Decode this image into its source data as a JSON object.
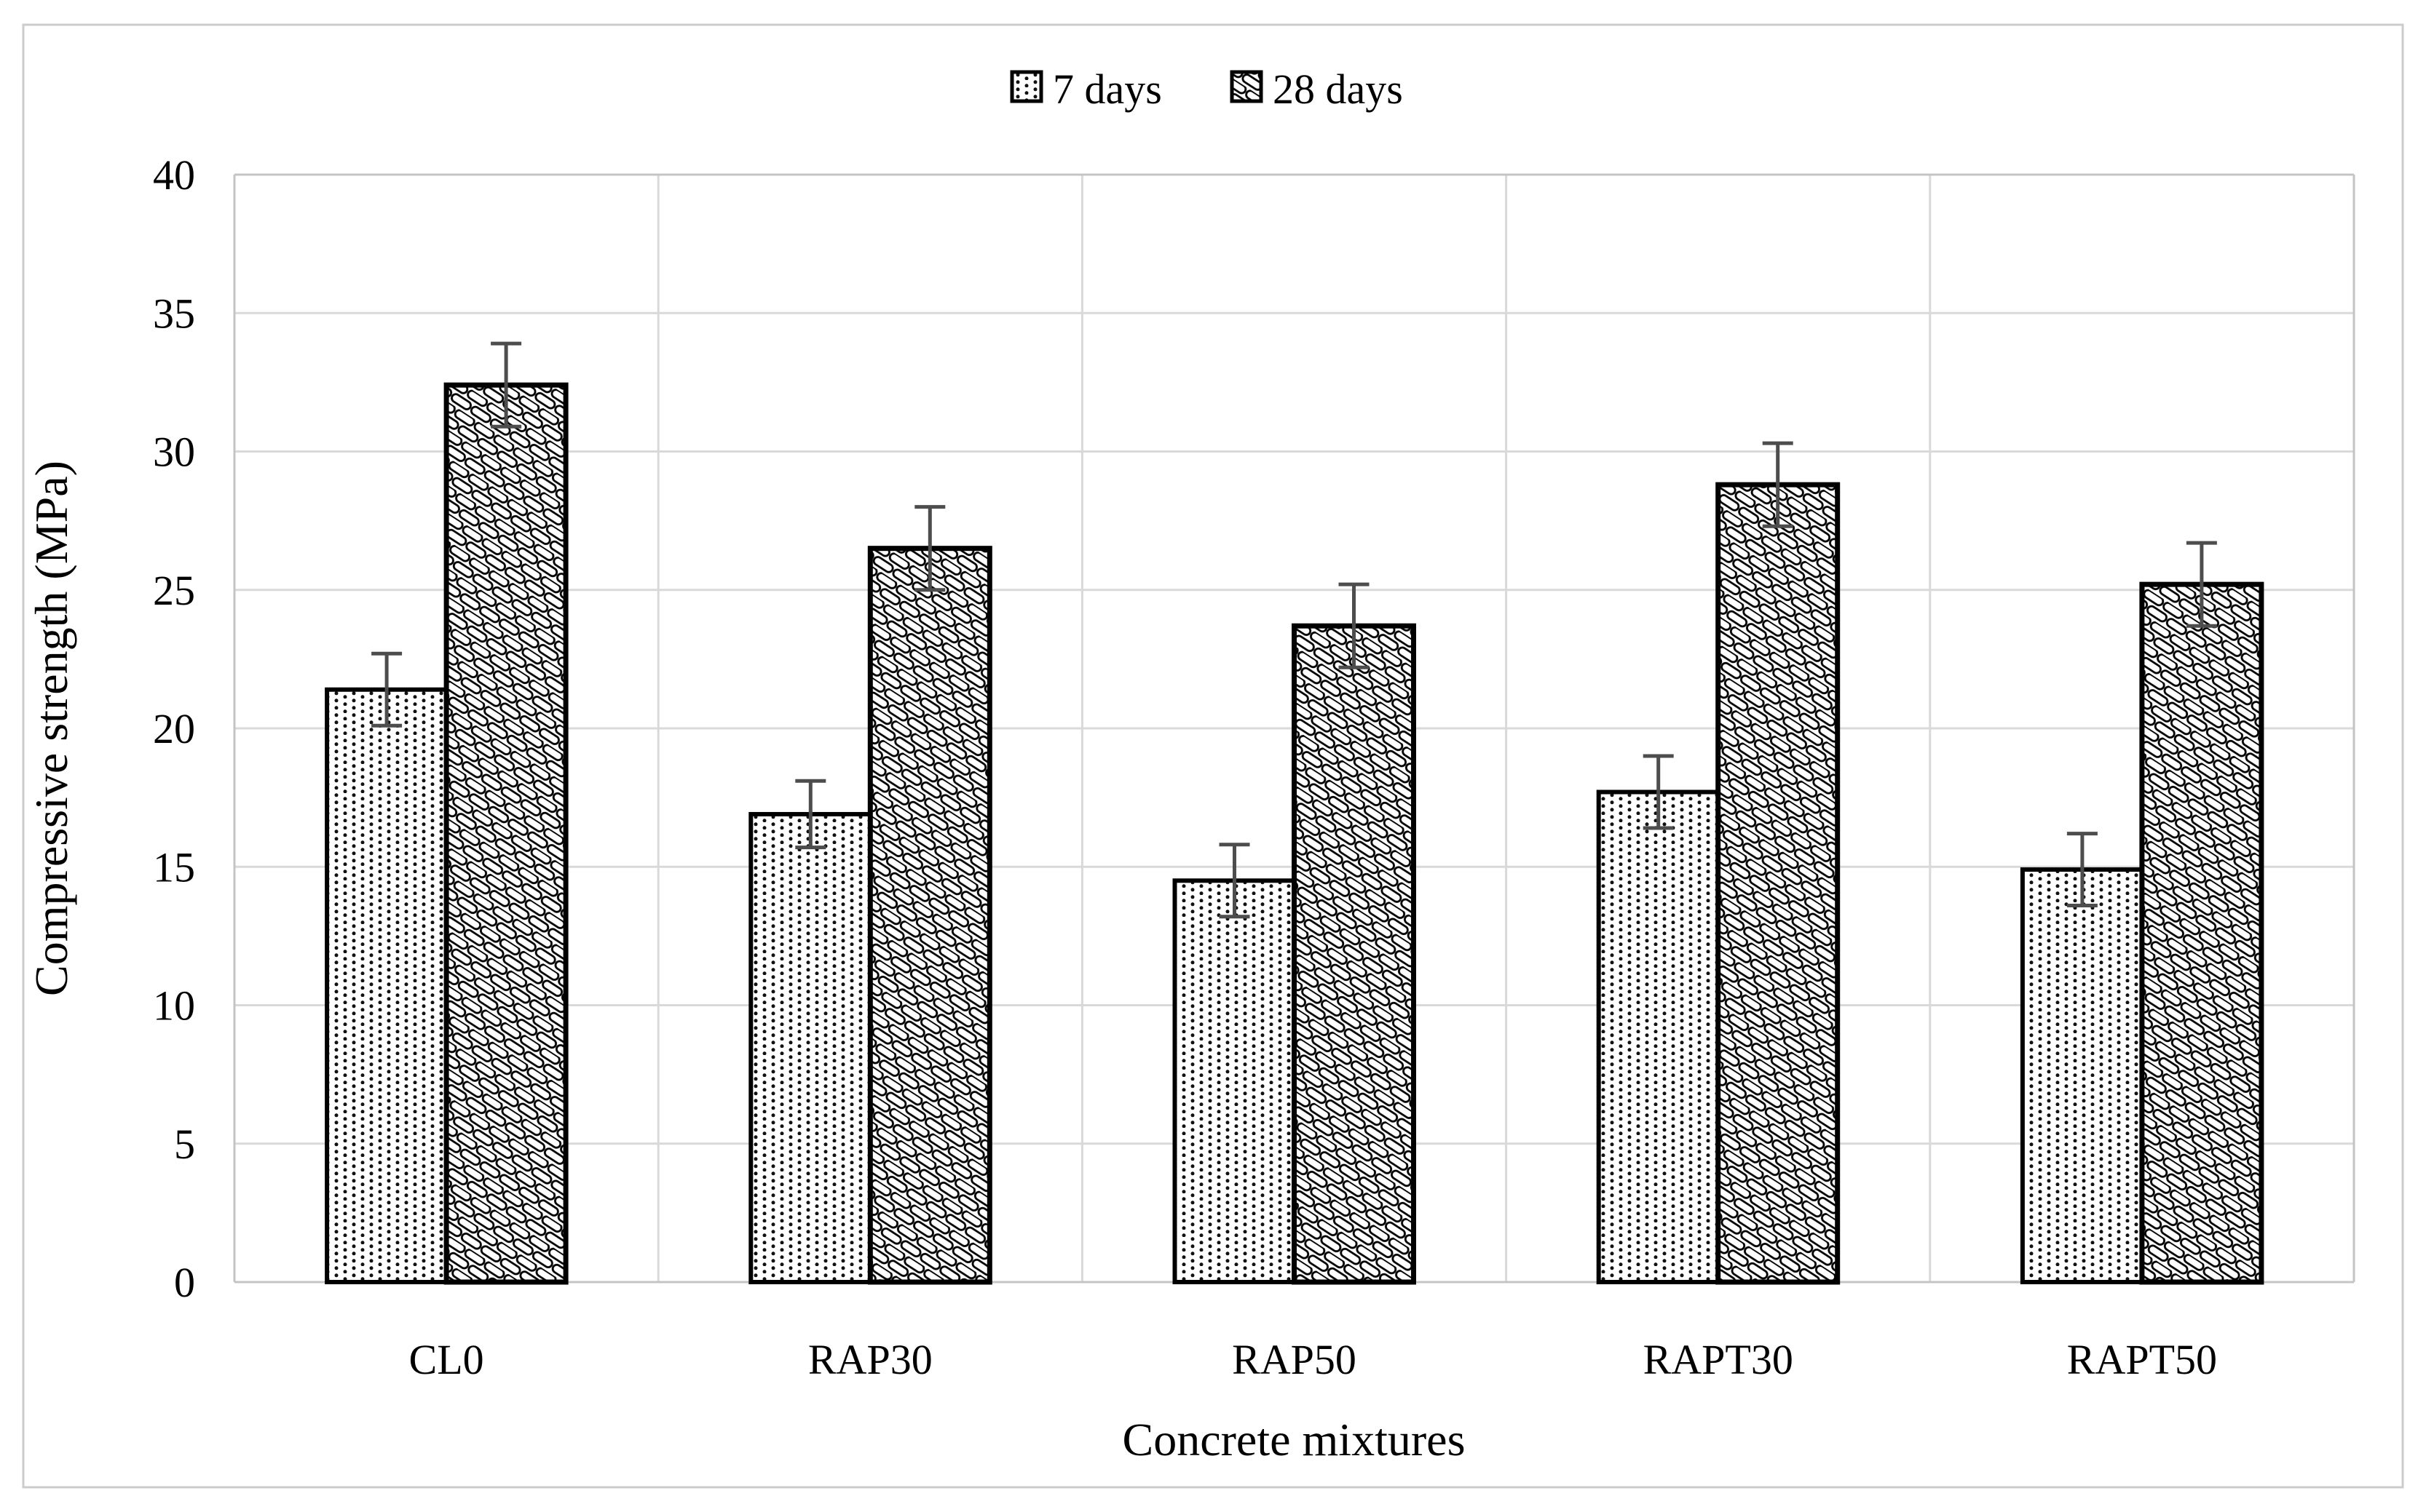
{
  "figure": {
    "background": "#ffffff",
    "border_color": "#cccccc"
  },
  "chart_data": {
    "type": "bar",
    "title": "",
    "categories": [
      "CL0",
      "RAP30",
      "RAP50",
      "RAPT30",
      "RAPT50"
    ],
    "series": [
      {
        "name": "7 days",
        "pattern": "dotted",
        "values": [
          21.4,
          16.9,
          14.5,
          17.7,
          14.9
        ],
        "errors": [
          1.3,
          1.2,
          1.3,
          1.3,
          1.3
        ]
      },
      {
        "name": "28 days",
        "pattern": "diagonal-weave",
        "values": [
          32.4,
          26.5,
          23.7,
          28.8,
          25.2
        ],
        "errors": [
          1.5,
          1.5,
          1.5,
          1.5,
          1.5
        ]
      }
    ],
    "xlabel": "Concrete mixtures",
    "ylabel": "Compressive strength (MPa)",
    "ylim": [
      0,
      40
    ],
    "yticks": [
      0,
      5,
      10,
      15,
      20,
      25,
      30,
      35,
      40
    ],
    "grid": "horizontal-and-category-separators",
    "legend_position": "top-center",
    "bar_fill": "#ffffff",
    "bar_stroke": "#000000",
    "error_bar_color": "#4d4d4d",
    "gridline_color": "#d9d9d9",
    "axis_line_color": "#c4c4c4"
  }
}
